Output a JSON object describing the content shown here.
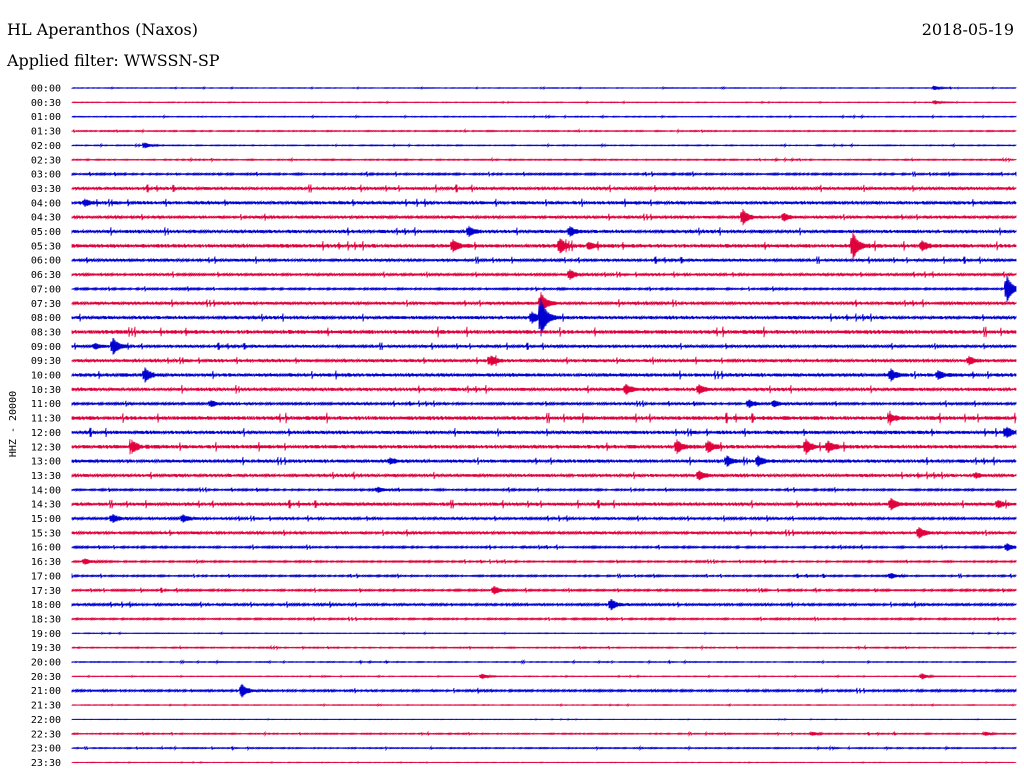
{
  "header": {
    "station": "HL Aperanthos (Naxos)",
    "date": "2018-05-19",
    "filter": "Applied filter: WWSSN-SP"
  },
  "chart_data": {
    "type": "line",
    "ylabel": "HHZ - 20000",
    "row_labels": [
      "00:00",
      "00:30",
      "01:00",
      "01:30",
      "02:00",
      "02:30",
      "03:00",
      "03:30",
      "04:00",
      "04:30",
      "05:00",
      "05:30",
      "06:00",
      "06:30",
      "07:00",
      "07:30",
      "08:00",
      "08:30",
      "09:00",
      "09:30",
      "10:00",
      "10:30",
      "11:00",
      "11:30",
      "12:00",
      "12:30",
      "13:00",
      "13:30",
      "14:00",
      "14:30",
      "15:00",
      "15:30",
      "16:00",
      "16:30",
      "17:00",
      "17:30",
      "18:00",
      "18:30",
      "19:00",
      "19:30",
      "20:00",
      "20:30",
      "21:00",
      "21:30",
      "22:00",
      "22:30",
      "23:00",
      "23:30"
    ],
    "colors": [
      "#0000d0",
      "#e0003c"
    ],
    "noise_levels": [
      0.3,
      0.3,
      0.4,
      0.5,
      0.4,
      0.5,
      0.8,
      1.2,
      1.3,
      1.1,
      1.3,
      1.5,
      1.1,
      1.0,
      0.8,
      1.2,
      1.3,
      1.6,
      1.1,
      1.2,
      1.4,
      1.3,
      1.0,
      1.6,
      1.4,
      1.5,
      1.3,
      1.2,
      0.8,
      1.3,
      1.0,
      1.1,
      0.8,
      0.7,
      0.7,
      0.8,
      1.0,
      0.7,
      0.3,
      0.5,
      0.4,
      0.3,
      0.9,
      0.3,
      0.2,
      0.5,
      0.5,
      0.2
    ],
    "events": [
      {
        "row": 0,
        "minute": 27.4,
        "amp": 2
      },
      {
        "row": 1,
        "minute": 27.4,
        "amp": 2
      },
      {
        "row": 4,
        "minute": 2.3,
        "amp": 3
      },
      {
        "row": 8,
        "minute": 0.4,
        "amp": 3
      },
      {
        "row": 9,
        "minute": 21.3,
        "amp": 8
      },
      {
        "row": 9,
        "minute": 22.6,
        "amp": 4
      },
      {
        "row": 10,
        "minute": 12.6,
        "amp": 5
      },
      {
        "row": 10,
        "minute": 15.8,
        "amp": 5
      },
      {
        "row": 11,
        "minute": 12.1,
        "amp": 6
      },
      {
        "row": 11,
        "minute": 15.5,
        "amp": 7
      },
      {
        "row": 11,
        "minute": 16.4,
        "amp": 4
      },
      {
        "row": 11,
        "minute": 24.8,
        "amp": 14
      },
      {
        "row": 11,
        "minute": 27.0,
        "amp": 5
      },
      {
        "row": 13,
        "minute": 15.8,
        "amp": 5
      },
      {
        "row": 14,
        "minute": 29.7,
        "amp": 14
      },
      {
        "row": 15,
        "minute": 14.9,
        "amp": 10
      },
      {
        "row": 16,
        "minute": 14.9,
        "amp": 18
      },
      {
        "row": 16,
        "minute": 14.6,
        "amp": 6
      },
      {
        "row": 18,
        "minute": 1.3,
        "amp": 8
      },
      {
        "row": 18,
        "minute": 0.7,
        "amp": 3
      },
      {
        "row": 19,
        "minute": 13.3,
        "amp": 5
      },
      {
        "row": 19,
        "minute": 28.5,
        "amp": 4
      },
      {
        "row": 20,
        "minute": 2.3,
        "amp": 7
      },
      {
        "row": 20,
        "minute": 26.0,
        "amp": 6
      },
      {
        "row": 20,
        "minute": 27.5,
        "amp": 4
      },
      {
        "row": 21,
        "minute": 17.6,
        "amp": 5
      },
      {
        "row": 21,
        "minute": 19.9,
        "amp": 5
      },
      {
        "row": 22,
        "minute": 4.4,
        "amp": 3
      },
      {
        "row": 22,
        "minute": 21.5,
        "amp": 4
      },
      {
        "row": 22,
        "minute": 22.3,
        "amp": 3
      },
      {
        "row": 23,
        "minute": 26.0,
        "amp": 4
      },
      {
        "row": 24,
        "minute": 29.7,
        "amp": 5
      },
      {
        "row": 25,
        "minute": 1.9,
        "amp": 6
      },
      {
        "row": 25,
        "minute": 19.2,
        "amp": 7
      },
      {
        "row": 25,
        "minute": 20.2,
        "amp": 6
      },
      {
        "row": 25,
        "minute": 23.3,
        "amp": 8
      },
      {
        "row": 25,
        "minute": 24.0,
        "amp": 6
      },
      {
        "row": 26,
        "minute": 20.8,
        "amp": 5
      },
      {
        "row": 26,
        "minute": 21.8,
        "amp": 5
      },
      {
        "row": 26,
        "minute": 10.1,
        "amp": 3
      },
      {
        "row": 27,
        "minute": 19.9,
        "amp": 5
      },
      {
        "row": 27,
        "minute": 28.7,
        "amp": 3
      },
      {
        "row": 28,
        "minute": 9.7,
        "amp": 3
      },
      {
        "row": 29,
        "minute": 26.0,
        "amp": 6
      },
      {
        "row": 29,
        "minute": 29.4,
        "amp": 4
      },
      {
        "row": 30,
        "minute": 1.3,
        "amp": 4
      },
      {
        "row": 30,
        "minute": 3.5,
        "amp": 4
      },
      {
        "row": 31,
        "minute": 26.9,
        "amp": 6
      },
      {
        "row": 32,
        "minute": 29.7,
        "amp": 4
      },
      {
        "row": 33,
        "minute": 0.4,
        "amp": 3
      },
      {
        "row": 34,
        "minute": 26.0,
        "amp": 3
      },
      {
        "row": 35,
        "minute": 13.4,
        "amp": 4
      },
      {
        "row": 36,
        "minute": 17.1,
        "amp": 6
      },
      {
        "row": 41,
        "minute": 13.0,
        "amp": 3
      },
      {
        "row": 41,
        "minute": 27.0,
        "amp": 3
      },
      {
        "row": 42,
        "minute": 5.4,
        "amp": 6
      },
      {
        "row": 45,
        "minute": 23.5,
        "amp": 2
      },
      {
        "row": 45,
        "minute": 29.0,
        "amp": 2
      }
    ]
  }
}
